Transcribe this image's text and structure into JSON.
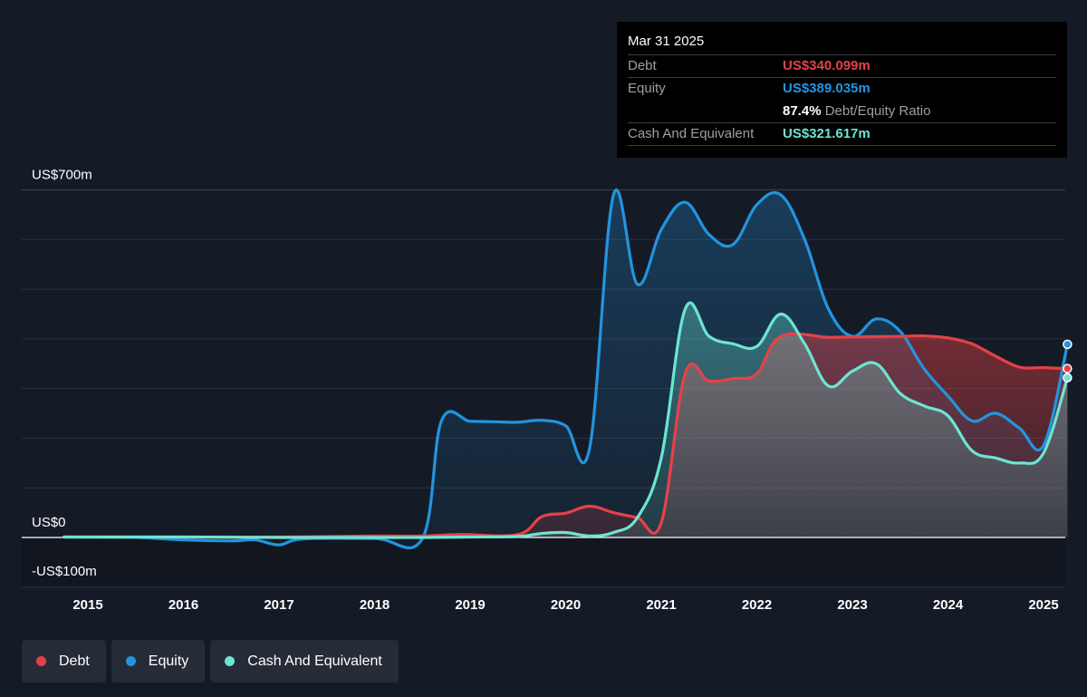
{
  "colors": {
    "debt": "#e64147",
    "equity": "#2394df",
    "cash": "#6ce5d2",
    "background": "#151b26"
  },
  "tooltip": {
    "date": "Mar 31 2025",
    "debt_label": "Debt",
    "debt_value": "US$340.099m",
    "equity_label": "Equity",
    "equity_value": "US$389.035m",
    "ratio_value": "87.4%",
    "ratio_label": "Debt/Equity Ratio",
    "cash_label": "Cash And Equivalent",
    "cash_value": "US$321.617m"
  },
  "legend": [
    {
      "label": "Debt",
      "color": "#e64147"
    },
    {
      "label": "Equity",
      "color": "#2394df"
    },
    {
      "label": "Cash And Equivalent",
      "color": "#6ce5d2"
    }
  ],
  "chart_data": {
    "type": "area",
    "title": "",
    "xlabel": "",
    "ylabel": "",
    "y_axis_labels": [
      "US$700m",
      "US$0",
      "-US$100m"
    ],
    "ylim": [
      -100,
      700
    ],
    "xlim": [
      2014.5,
      2025.25
    ],
    "x_ticks": [
      2015,
      2016,
      2017,
      2018,
      2019,
      2020,
      2021,
      2022,
      2023,
      2024,
      2025
    ],
    "grid": true,
    "legend_position": "bottom-left",
    "series": [
      {
        "name": "Debt",
        "color": "#e64147",
        "points": [
          [
            2014.75,
            1
          ],
          [
            2016.0,
            1
          ],
          [
            2017.0,
            1
          ],
          [
            2018.0,
            3
          ],
          [
            2018.5,
            3
          ],
          [
            2018.9,
            6
          ],
          [
            2019.5,
            6
          ],
          [
            2019.75,
            42
          ],
          [
            2020.0,
            49
          ],
          [
            2020.25,
            63
          ],
          [
            2020.5,
            50
          ],
          [
            2020.75,
            40
          ],
          [
            2021.0,
            30
          ],
          [
            2021.25,
            330
          ],
          [
            2021.5,
            315
          ],
          [
            2021.75,
            320
          ],
          [
            2022.0,
            330
          ],
          [
            2022.25,
            405
          ],
          [
            2022.75,
            403
          ],
          [
            2023.0,
            404
          ],
          [
            2023.5,
            405
          ],
          [
            2023.75,
            406
          ],
          [
            2024.0,
            402
          ],
          [
            2024.25,
            390
          ],
          [
            2024.5,
            365
          ],
          [
            2024.75,
            343
          ],
          [
            2025.0,
            342
          ],
          [
            2025.25,
            340.099
          ]
        ]
      },
      {
        "name": "Equity",
        "color": "#2394df",
        "points": [
          [
            2014.75,
            1
          ],
          [
            2015.5,
            0
          ],
          [
            2016.0,
            -5
          ],
          [
            2016.5,
            -7
          ],
          [
            2016.75,
            -5
          ],
          [
            2017.0,
            -15
          ],
          [
            2017.25,
            -3
          ],
          [
            2018.0,
            -2
          ],
          [
            2018.5,
            -2
          ],
          [
            2018.7,
            235
          ],
          [
            2019.0,
            234
          ],
          [
            2019.25,
            233
          ],
          [
            2019.5,
            232
          ],
          [
            2019.75,
            236
          ],
          [
            2020.0,
            225
          ],
          [
            2020.25,
            180
          ],
          [
            2020.5,
            690
          ],
          [
            2020.75,
            510
          ],
          [
            2021.0,
            620
          ],
          [
            2021.25,
            675
          ],
          [
            2021.5,
            610
          ],
          [
            2021.75,
            590
          ],
          [
            2022.0,
            670
          ],
          [
            2022.25,
            690
          ],
          [
            2022.5,
            600
          ],
          [
            2022.75,
            460
          ],
          [
            2023.0,
            405
          ],
          [
            2023.25,
            440
          ],
          [
            2023.5,
            415
          ],
          [
            2023.75,
            340
          ],
          [
            2024.0,
            285
          ],
          [
            2024.25,
            235
          ],
          [
            2024.5,
            250
          ],
          [
            2024.75,
            220
          ],
          [
            2025.0,
            185
          ],
          [
            2025.25,
            389.035
          ]
        ]
      },
      {
        "name": "Cash And Equivalent",
        "color": "#6ce5d2",
        "points": [
          [
            2014.75,
            1
          ],
          [
            2016.0,
            1
          ],
          [
            2017.0,
            0
          ],
          [
            2018.0,
            0
          ],
          [
            2018.5,
            0
          ],
          [
            2019.0,
            1
          ],
          [
            2019.5,
            2
          ],
          [
            2019.75,
            8
          ],
          [
            2020.0,
            10
          ],
          [
            2020.25,
            3
          ],
          [
            2020.5,
            10
          ],
          [
            2020.75,
            40
          ],
          [
            2021.0,
            160
          ],
          [
            2021.25,
            460
          ],
          [
            2021.5,
            405
          ],
          [
            2021.75,
            390
          ],
          [
            2022.0,
            385
          ],
          [
            2022.25,
            450
          ],
          [
            2022.5,
            390
          ],
          [
            2022.75,
            305
          ],
          [
            2023.0,
            335
          ],
          [
            2023.25,
            350
          ],
          [
            2023.5,
            290
          ],
          [
            2023.75,
            265
          ],
          [
            2024.0,
            245
          ],
          [
            2024.25,
            175
          ],
          [
            2024.5,
            160
          ],
          [
            2024.75,
            150
          ],
          [
            2025.0,
            170
          ],
          [
            2025.25,
            321.617
          ]
        ]
      }
    ]
  }
}
